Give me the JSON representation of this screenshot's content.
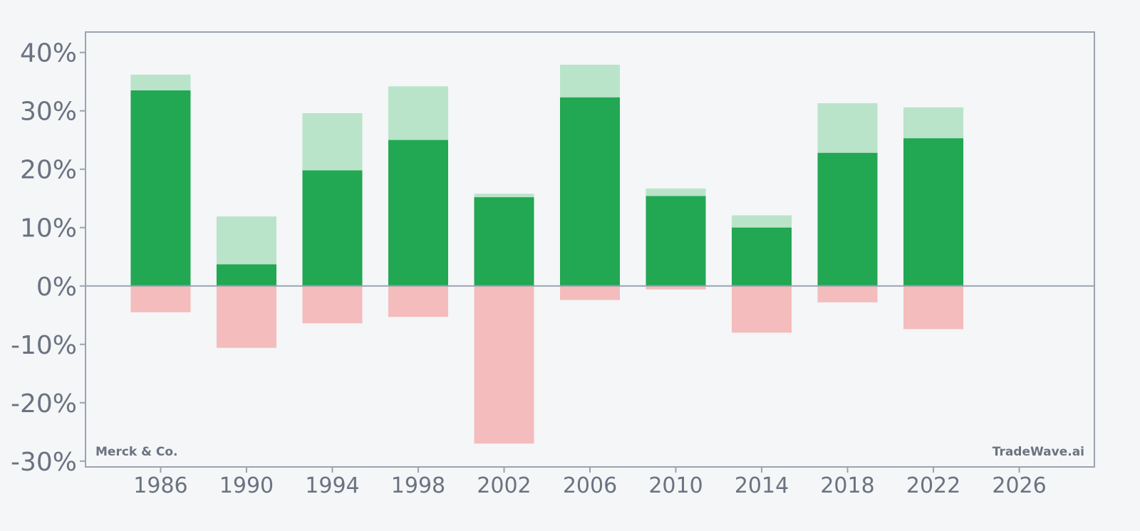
{
  "chart_data": {
    "type": "bar",
    "stacked_overlay": true,
    "x": [
      1986,
      1990,
      1994,
      1998,
      2002,
      2006,
      2010,
      2014,
      2018,
      2022
    ],
    "series": [
      {
        "values": [
          33.5,
          3.7,
          19.8,
          25.0,
          15.2,
          32.3,
          15.4,
          10.0,
          22.8,
          25.3
        ]
      },
      {
        "values": [
          36.2,
          11.9,
          29.6,
          34.2,
          15.8,
          37.9,
          16.7,
          12.1,
          31.3,
          30.6
        ]
      },
      {
        "values": [
          -4.5,
          -10.6,
          -6.4,
          -5.3,
          -27.0,
          -2.4,
          -0.6,
          -8.0,
          -2.8,
          -7.4
        ]
      }
    ],
    "colors": {
      "close_return": "#22a752",
      "high_return": "#b9e4c9",
      "low_return": "#f4bcbc",
      "axis": "#9ca3af",
      "text": "#6b7280",
      "background": "#f4f6f8"
    },
    "xticks": [
      "1986",
      "1990",
      "1994",
      "1998",
      "2002",
      "2006",
      "2010",
      "2014",
      "2018",
      "2022",
      "2026"
    ],
    "yticks": [
      "40%",
      "30%",
      "20%",
      "10%",
      "0%",
      "-10%",
      "-20%",
      "-30%"
    ],
    "xlim": [
      1982.5,
      2029.5
    ],
    "ylim": [
      -31,
      43.5
    ],
    "title": "",
    "xlabel": "",
    "ylabel": "",
    "grid": false,
    "legend": "none",
    "watermark_left": "Merck & Co.",
    "watermark_right": "TradeWave.ai"
  }
}
